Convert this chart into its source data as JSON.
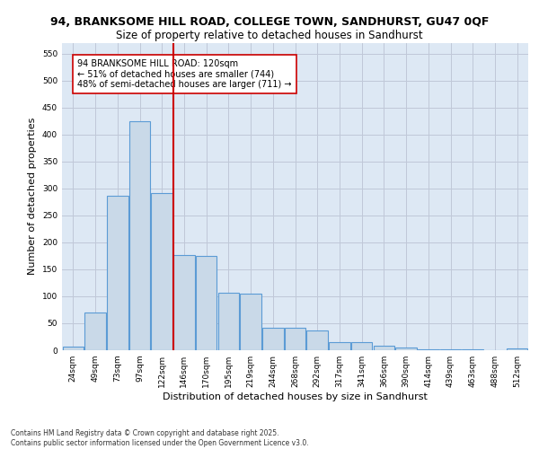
{
  "title_line1": "94, BRANKSOME HILL ROAD, COLLEGE TOWN, SANDHURST, GU47 0QF",
  "title_line2": "Size of property relative to detached houses in Sandhurst",
  "xlabel": "Distribution of detached houses by size in Sandhurst",
  "ylabel": "Number of detached properties",
  "categories": [
    "24sqm",
    "49sqm",
    "73sqm",
    "97sqm",
    "122sqm",
    "146sqm",
    "170sqm",
    "195sqm",
    "219sqm",
    "244sqm",
    "268sqm",
    "292sqm",
    "317sqm",
    "341sqm",
    "366sqm",
    "390sqm",
    "414sqm",
    "439sqm",
    "463sqm",
    "488sqm",
    "512sqm"
  ],
  "values": [
    7,
    70,
    287,
    425,
    291,
    177,
    175,
    107,
    105,
    42,
    41,
    37,
    15,
    15,
    8,
    5,
    2,
    1,
    1,
    0,
    3
  ],
  "bar_color": "#c9d9e8",
  "bar_edge_color": "#5b9bd5",
  "property_bin_index": 4,
  "vline_color": "#cc0000",
  "annotation_text": "94 BRANKSOME HILL ROAD: 120sqm\n← 51% of detached houses are smaller (744)\n48% of semi-detached houses are larger (711) →",
  "annotation_box_color": "#ffffff",
  "annotation_box_edge": "#cc0000",
  "ylim": [
    0,
    570
  ],
  "yticks": [
    0,
    50,
    100,
    150,
    200,
    250,
    300,
    350,
    400,
    450,
    500,
    550
  ],
  "grid_color": "#c0c8d8",
  "background_color": "#dde8f4",
  "footer_text": "Contains HM Land Registry data © Crown copyright and database right 2025.\nContains public sector information licensed under the Open Government Licence v3.0.",
  "title_fontsize": 9,
  "subtitle_fontsize": 8.5,
  "tick_fontsize": 6.5,
  "label_fontsize": 8,
  "annotation_fontsize": 7
}
